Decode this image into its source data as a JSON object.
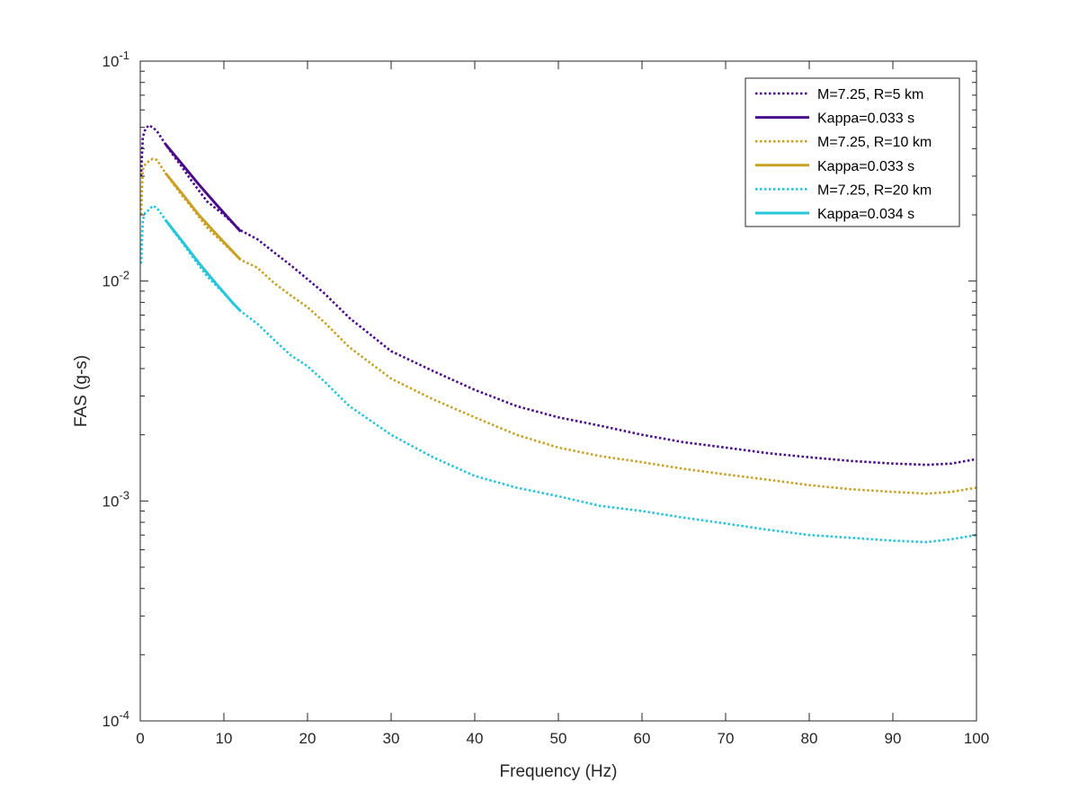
{
  "chart_data": {
    "type": "line",
    "title": "",
    "xlabel": "Frequency (Hz)",
    "ylabel": "FAS (g-s)",
    "xlim": [
      0,
      100
    ],
    "ylim": [
      0.0001,
      0.1
    ],
    "yscale": "log",
    "grid": false,
    "box": true,
    "legend_position": "top-right",
    "x_ticks": [
      0,
      10,
      20,
      30,
      40,
      50,
      60,
      70,
      80,
      90,
      100
    ],
    "x_tick_labels": [
      "0",
      "10",
      "20",
      "30",
      "40",
      "50",
      "60",
      "70",
      "80",
      "90",
      "100"
    ],
    "y_ticks": [
      0.1,
      0.01,
      0.001,
      0.0001
    ],
    "y_tick_labels": [
      {
        "base": "10",
        "exp": "-1"
      },
      {
        "base": "10",
        "exp": "-2"
      },
      {
        "base": "10",
        "exp": "-3"
      },
      {
        "base": "10",
        "exp": "-4"
      }
    ],
    "series": [
      {
        "name": "M=7.25, R=5 km",
        "color": "#4B0C8A",
        "style": "dotted",
        "x": [
          0.1,
          0.3,
          0.6,
          1.0,
          1.5,
          2.0,
          3.0,
          4.0,
          5.0,
          6.0,
          8.0,
          10.0,
          12.0,
          14.0,
          16.0,
          18.0,
          20.0,
          22.0,
          25.0,
          30.0,
          35.0,
          40.0,
          45.0,
          50.0,
          55.0,
          60.0,
          65.0,
          70.0,
          75.0,
          80.0,
          85.0,
          90.0,
          94.0,
          97.0,
          100.0
        ],
        "y": [
          0.03,
          0.045,
          0.049,
          0.051,
          0.05,
          0.048,
          0.042,
          0.037,
          0.033,
          0.029,
          0.023,
          0.02,
          0.017,
          0.0155,
          0.0135,
          0.0118,
          0.0102,
          0.0088,
          0.0068,
          0.0048,
          0.0039,
          0.0032,
          0.0027,
          0.0024,
          0.0022,
          0.002,
          0.00185,
          0.00175,
          0.00165,
          0.00158,
          0.00152,
          0.00148,
          0.00146,
          0.00148,
          0.00155
        ]
      },
      {
        "name": "Kappa=0.033 s",
        "color": "#4B0C8A",
        "style": "solid",
        "x": [
          3.0,
          5.0,
          7.0,
          9.0,
          11.0,
          12.0
        ],
        "y": [
          0.042,
          0.034,
          0.0275,
          0.0225,
          0.0185,
          0.0168
        ]
      },
      {
        "name": "M=7.25, R=10 km",
        "color": "#C9A225",
        "style": "dotted",
        "x": [
          0.1,
          0.3,
          0.6,
          1.0,
          1.5,
          2.0,
          3.0,
          4.0,
          5.0,
          6.0,
          8.0,
          10.0,
          12.0,
          14.0,
          16.0,
          18.0,
          20.0,
          22.0,
          25.0,
          30.0,
          35.0,
          40.0,
          45.0,
          50.0,
          55.0,
          60.0,
          65.0,
          70.0,
          75.0,
          80.0,
          85.0,
          90.0,
          94.0,
          97.0,
          100.0
        ],
        "y": [
          0.02,
          0.032,
          0.034,
          0.035,
          0.036,
          0.0355,
          0.031,
          0.0275,
          0.0245,
          0.022,
          0.0175,
          0.0148,
          0.0125,
          0.0115,
          0.0098,
          0.0086,
          0.0076,
          0.0065,
          0.005,
          0.0036,
          0.0029,
          0.0024,
          0.002,
          0.00175,
          0.0016,
          0.0015,
          0.0014,
          0.00132,
          0.00125,
          0.00118,
          0.00113,
          0.0011,
          0.00108,
          0.0011,
          0.00115
        ]
      },
      {
        "name": "Kappa=0.033 s",
        "color": "#C9A225",
        "style": "solid",
        "x": [
          3.0,
          5.0,
          7.0,
          9.0,
          11.0,
          12.0
        ],
        "y": [
          0.031,
          0.025,
          0.02,
          0.0165,
          0.0137,
          0.0125
        ]
      },
      {
        "name": "M=7.25, R=20 km",
        "color": "#26C6DA",
        "style": "dotted",
        "x": [
          0.1,
          0.3,
          0.6,
          1.0,
          1.5,
          2.0,
          3.0,
          4.0,
          5.0,
          6.0,
          8.0,
          10.0,
          12.0,
          14.0,
          16.0,
          18.0,
          20.0,
          22.0,
          25.0,
          30.0,
          35.0,
          40.0,
          45.0,
          50.0,
          55.0,
          60.0,
          65.0,
          70.0,
          75.0,
          80.0,
          85.0,
          90.0,
          94.0,
          97.0,
          100.0
        ],
        "y": [
          0.012,
          0.019,
          0.0205,
          0.021,
          0.022,
          0.0215,
          0.019,
          0.0168,
          0.015,
          0.0133,
          0.0105,
          0.0088,
          0.0073,
          0.0064,
          0.0054,
          0.0046,
          0.0041,
          0.0035,
          0.0027,
          0.002,
          0.00158,
          0.0013,
          0.00115,
          0.00105,
          0.00095,
          0.0009,
          0.00084,
          0.00079,
          0.00074,
          0.0007,
          0.00068,
          0.00066,
          0.00065,
          0.00067,
          0.0007
        ]
      },
      {
        "name": "Kappa=0.034 s",
        "color": "#26C6DA",
        "style": "solid",
        "x": [
          3.0,
          5.0,
          7.0,
          9.0,
          11.0,
          12.0
        ],
        "y": [
          0.019,
          0.0152,
          0.0121,
          0.0098,
          0.008,
          0.0073
        ]
      }
    ]
  }
}
